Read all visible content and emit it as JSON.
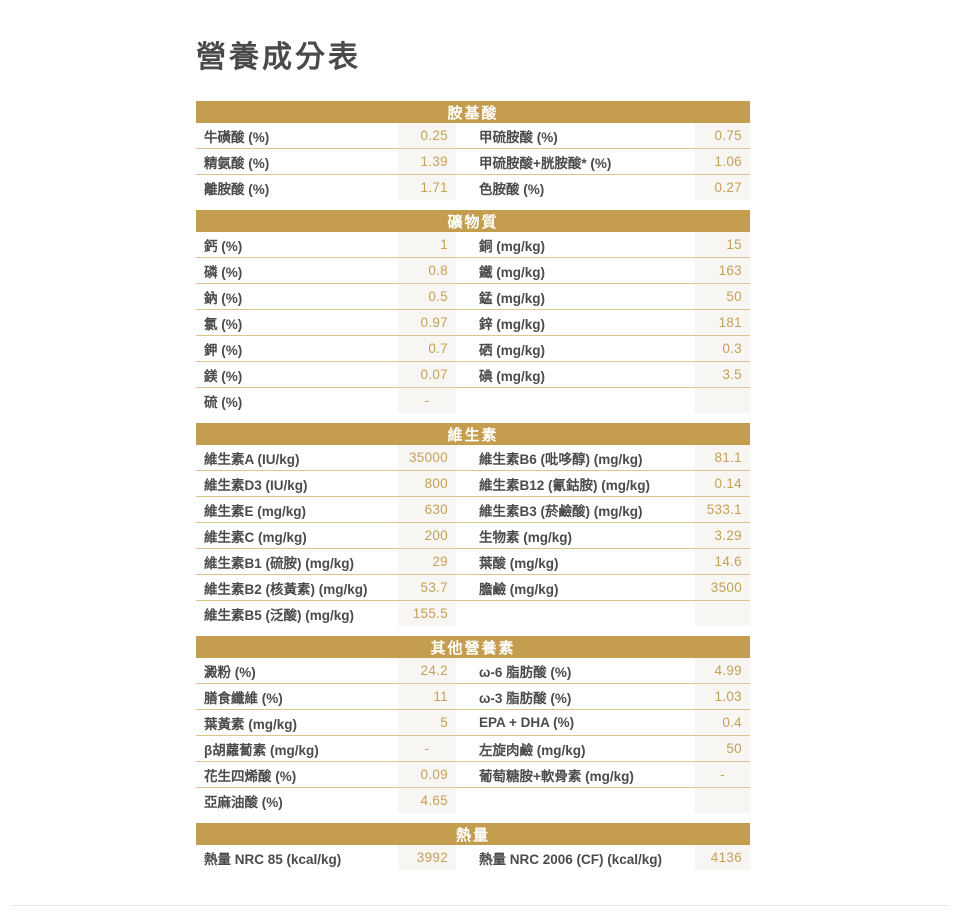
{
  "page": {
    "title": "營養成分表"
  },
  "colors": {
    "section_header_bg": "#c59d4f",
    "section_header_text": "#ffffff",
    "value_text": "#c6a056",
    "value_cell_bg": "#f7f6f3",
    "row_border": "#ddc48e",
    "label_text": "#4b4b4b",
    "title_text": "#4a4a4a"
  },
  "table": {
    "sections": [
      {
        "title": "胺基酸",
        "rows": [
          {
            "l1": "牛磺酸 (%)",
            "v1": "0.25",
            "l2": "甲硫胺酸 (%)",
            "v2": "0.75"
          },
          {
            "l1": "精氨酸 (%)",
            "v1": "1.39",
            "l2": "甲硫胺酸+胱胺酸* (%)",
            "v2": "1.06"
          },
          {
            "l1": "離胺酸 (%)",
            "v1": "1.71",
            "l2": "色胺酸 (%)",
            "v2": "0.27"
          }
        ]
      },
      {
        "title": "礦物質",
        "rows": [
          {
            "l1": "鈣 (%)",
            "v1": "1",
            "l2": "銅 (mg/kg)",
            "v2": "15"
          },
          {
            "l1": "磷 (%)",
            "v1": "0.8",
            "l2": "鐵 (mg/kg)",
            "v2": "163"
          },
          {
            "l1": "鈉 (%)",
            "v1": "0.5",
            "l2": "錳 (mg/kg)",
            "v2": "50"
          },
          {
            "l1": "氯 (%)",
            "v1": "0.97",
            "l2": "鋅 (mg/kg)",
            "v2": "181"
          },
          {
            "l1": "鉀 (%)",
            "v1": "0.7",
            "l2": "硒 (mg/kg)",
            "v2": "0.3"
          },
          {
            "l1": "鎂 (%)",
            "v1": "0.07",
            "l2": "碘 (mg/kg)",
            "v2": "3.5"
          },
          {
            "l1": "硫 (%)",
            "v1": "-",
            "l2": "",
            "v2": ""
          }
        ]
      },
      {
        "title": "維生素",
        "rows": [
          {
            "l1": "維生素A (IU/kg)",
            "v1": "35000",
            "l2": "維生素B6 (吡哆醇) (mg/kg)",
            "v2": "81.1"
          },
          {
            "l1": "維生素D3 (IU/kg)",
            "v1": "800",
            "l2": "維生素B12 (氰鈷胺) (mg/kg)",
            "v2": "0.14"
          },
          {
            "l1": "維生素E (mg/kg)",
            "v1": "630",
            "l2": "維生素B3 (菸鹼酸) (mg/kg)",
            "v2": "533.1"
          },
          {
            "l1": "維生素C (mg/kg)",
            "v1": "200",
            "l2": "生物素 (mg/kg)",
            "v2": "3.29"
          },
          {
            "l1": "維生素B1 (硫胺) (mg/kg)",
            "v1": "29",
            "l2": "葉酸 (mg/kg)",
            "v2": "14.6"
          },
          {
            "l1": "維生素B2 (核黃素) (mg/kg)",
            "v1": "53.7",
            "l2": "膽鹼 (mg/kg)",
            "v2": "3500"
          },
          {
            "l1": "維生素B5 (泛酸) (mg/kg)",
            "v1": "155.5",
            "l2": "",
            "v2": ""
          }
        ]
      },
      {
        "title": "其他營養素",
        "rows": [
          {
            "l1": "澱粉 (%)",
            "v1": "24.2",
            "l2": "ω-6 脂肪酸 (%)",
            "v2": "4.99"
          },
          {
            "l1": "膳食纖維 (%)",
            "v1": "11",
            "l2": "ω-3 脂肪酸 (%)",
            "v2": "1.03"
          },
          {
            "l1": "葉黃素 (mg/kg)",
            "v1": "5",
            "l2": "EPA + DHA (%)",
            "v2": "0.4"
          },
          {
            "l1": "β胡蘿蔔素 (mg/kg)",
            "v1": "-",
            "l2": "左旋肉鹼 (mg/kg)",
            "v2": "50"
          },
          {
            "l1": "花生四烯酸 (%)",
            "v1": "0.09",
            "l2": "葡萄糖胺+軟骨素 (mg/kg)",
            "v2": "-"
          },
          {
            "l1": "亞麻油酸 (%)",
            "v1": "4.65",
            "l2": "",
            "v2": ""
          }
        ]
      },
      {
        "title": "熱量",
        "rows": [
          {
            "l1": "熱量 NRC 85 (kcal/kg)",
            "v1": "3992",
            "l2": "熱量 NRC 2006 (CF) (kcal/kg)",
            "v2": "4136"
          }
        ]
      }
    ]
  }
}
